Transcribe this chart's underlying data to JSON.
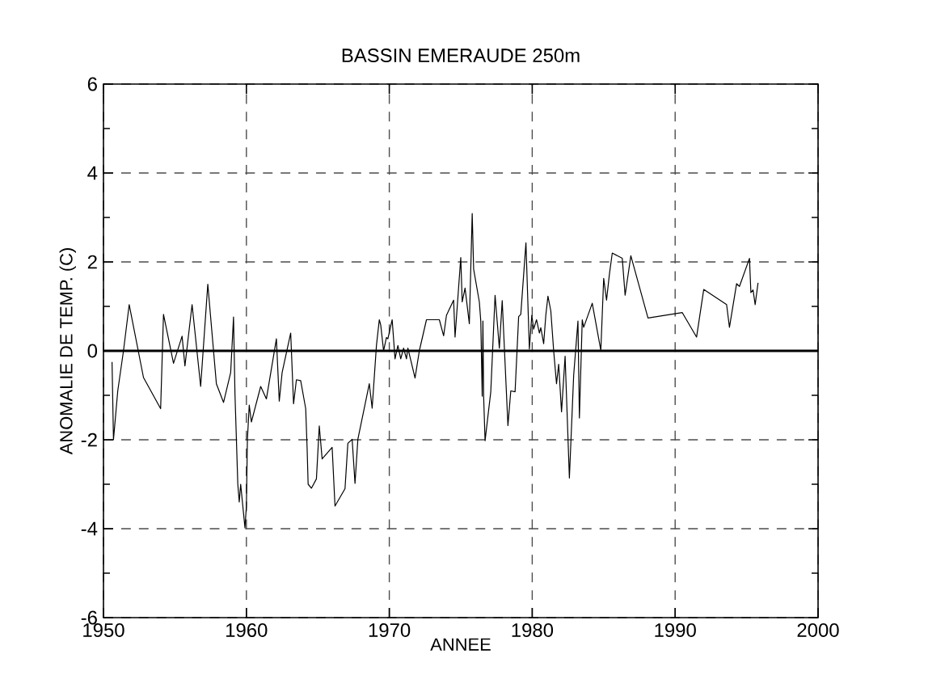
{
  "chart_data": {
    "type": "line",
    "title": "BASSIN  EMERAUDE  250m",
    "xlabel": "ANNEE",
    "ylabel": "ANOMALIE  DE  TEMP.  (C)",
    "xlim": [
      1950,
      2000
    ],
    "ylim": [
      -6,
      6
    ],
    "xticks": [
      1950,
      1960,
      1970,
      1980,
      1990,
      2000
    ],
    "yticks": [
      -6,
      -4,
      -2,
      0,
      2,
      4,
      6
    ],
    "grid": true,
    "line_style": "solid",
    "ref_lines": [
      {
        "axis": "y",
        "value": 0
      }
    ],
    "x": [
      1950.6,
      1950.7,
      1951.0,
      1951.4,
      1951.8,
      1952.8,
      1954.0,
      1954.2,
      1954.9,
      1955.5,
      1955.7,
      1956.2,
      1956.8,
      1957.3,
      1957.9,
      1958.4,
      1958.9,
      1959.1,
      1959.2,
      1959.4,
      1959.5,
      1959.6,
      1959.9,
      1960.0,
      1960.07,
      1960.2,
      1960.35,
      1961.0,
      1961.4,
      1962.1,
      1962.3,
      1962.5,
      1963.1,
      1963.3,
      1963.5,
      1963.8,
      1964.15,
      1964.25,
      1964.32,
      1964.55,
      1964.9,
      1965.1,
      1965.3,
      1966.0,
      1966.2,
      1966.9,
      1967.1,
      1967.4,
      1967.6,
      1967.8,
      1968.6,
      1968.8,
      1969.1,
      1969.3,
      1969.4,
      1969.6,
      1969.8,
      1969.9,
      1970.2,
      1970.4,
      1970.6,
      1970.8,
      1971.0,
      1971.2,
      1971.3,
      1971.8,
      1972.1,
      1972.6,
      1973.5,
      1973.8,
      1974.0,
      1974.5,
      1974.6,
      1975.0,
      1975.1,
      1975.3,
      1975.6,
      1975.8,
      1975.9,
      1976.3,
      1976.4,
      1976.5,
      1976.55,
      1976.6,
      1976.7,
      1977.1,
      1977.4,
      1977.7,
      1977.9,
      1978.3,
      1978.5,
      1978.8,
      1979.05,
      1979.2,
      1979.56,
      1979.8,
      1979.97,
      1980.1,
      1980.3,
      1980.5,
      1980.6,
      1980.8,
      1980.95,
      1981.1,
      1981.3,
      1981.5,
      1981.7,
      1981.85,
      1982.05,
      1982.3,
      1982.6,
      1982.9,
      1983.2,
      1983.3,
      1983.5,
      1983.6,
      1984.2,
      1984.8,
      1985.0,
      1985.2,
      1985.4,
      1985.6,
      1986.3,
      1986.5,
      1986.9,
      1988.1,
      1990.5,
      1991.5,
      1992.0,
      1993.6,
      1993.8,
      1994.3,
      1994.5,
      1995.2,
      1995.3,
      1995.45,
      1995.6,
      1995.8
    ],
    "values": [
      -0.25,
      -2.0,
      -0.9,
      0,
      1.04,
      -0.6,
      -1.3,
      0.82,
      -0.28,
      0.33,
      -0.34,
      1.04,
      -0.8,
      1.5,
      -0.74,
      -1.16,
      -0.49,
      0.76,
      -0.96,
      -3.0,
      -3.4,
      -3.0,
      -3.98,
      -3.49,
      -2.0,
      -1.22,
      -1.6,
      -0.8,
      -1.08,
      0.27,
      -1.13,
      -0.49,
      0.4,
      -1.19,
      -0.65,
      -0.67,
      -1.3,
      -2.2,
      -3.0,
      -3.09,
      -2.88,
      -1.69,
      -2.43,
      -2.17,
      -3.49,
      -3.1,
      -2.08,
      -1.99,
      -2.98,
      -1.99,
      -0.74,
      -1.29,
      0.12,
      0.7,
      0.58,
      0,
      0.3,
      0.27,
      0.7,
      -0.18,
      0.12,
      -0.18,
      0.06,
      -0.18,
      0.06,
      -0.61,
      0,
      0.7,
      0.7,
      0.34,
      0.8,
      1.14,
      0.31,
      2.1,
      1.1,
      1.41,
      0.61,
      3.09,
      1.84,
      1.1,
      0.67,
      -1.02,
      0.67,
      -1.02,
      -2.02,
      -0.92,
      1.25,
      0.06,
      1.13,
      -1.68,
      -0.9,
      -0.92,
      0.77,
      0.82,
      2.43,
      0.04,
      0.8,
      0.49,
      0.7,
      0.4,
      0.52,
      0.16,
      0.8,
      1.23,
      0.9,
      0,
      -0.74,
      -0.3,
      -1.37,
      -0.12,
      -2.86,
      -0.55,
      0.67,
      -1.51,
      0.7,
      0.53,
      1.07,
      0.01,
      1.63,
      1.14,
      1.72,
      2.2,
      2.08,
      1.25,
      2.14,
      0.74,
      0.86,
      0.31,
      1.38,
      1.04,
      0.53,
      1.51,
      1.45,
      2.08,
      1.31,
      1.37,
      1.04,
      1.53
    ]
  }
}
